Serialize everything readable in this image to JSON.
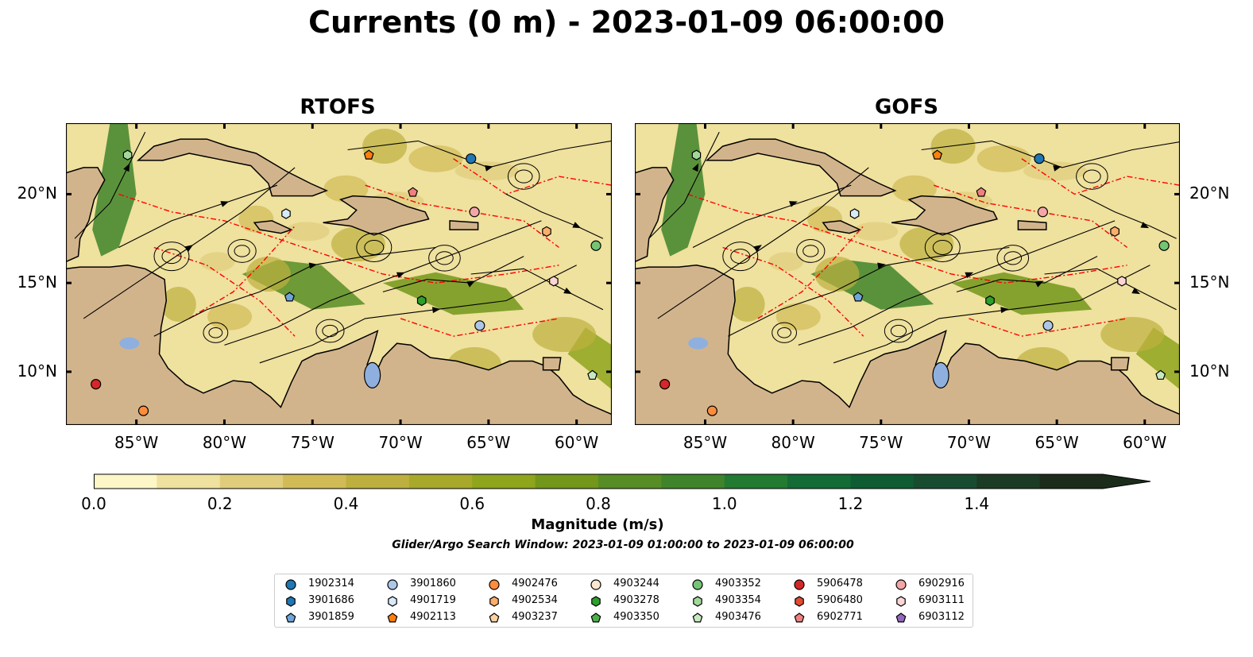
{
  "title": "Currents (0 m) - 2023-01-09 06:00:00",
  "panels": [
    {
      "title": "RTOFS",
      "model": "rtofs"
    },
    {
      "title": "GOFS",
      "model": "gofs"
    }
  ],
  "map": {
    "lon_range": [
      -89,
      -58
    ],
    "lat_range": [
      7,
      24
    ],
    "x_ticks": [
      {
        "lon": -85,
        "label": "85°W"
      },
      {
        "lon": -80,
        "label": "80°W"
      },
      {
        "lon": -75,
        "label": "75°W"
      },
      {
        "lon": -70,
        "label": "70°W"
      },
      {
        "lon": -65,
        "label": "65°W"
      },
      {
        "lon": -60,
        "label": "60°W"
      }
    ],
    "y_ticks": [
      {
        "lat": 20,
        "label": "20°N"
      },
      {
        "lat": 15,
        "label": "15°N"
      },
      {
        "lat": 10,
        "label": "10°N"
      }
    ],
    "colors": {
      "land": "#d2b48c",
      "lakes": "#8fb0de",
      "eez": "#ff0000",
      "streamlines": "#000000"
    }
  },
  "colorbar": {
    "label": "Magnitude (m/s)",
    "range": [
      0,
      1.6
    ],
    "extend": "max",
    "ticks": [
      {
        "value": 0.0,
        "label": "0.0"
      },
      {
        "value": 0.2,
        "label": "0.2"
      },
      {
        "value": 0.4,
        "label": "0.4"
      },
      {
        "value": 0.6,
        "label": "0.6"
      },
      {
        "value": 0.8,
        "label": "0.8"
      },
      {
        "value": 1.0,
        "label": "1.0"
      },
      {
        "value": 1.2,
        "label": "1.2"
      },
      {
        "value": 1.4,
        "label": "1.4"
      }
    ],
    "colors": [
      "#fdf7c8",
      "#efe19e",
      "#e0cd7c",
      "#d1bb56",
      "#bdb03e",
      "#a8a92b",
      "#8ea51c",
      "#72971a",
      "#578d24",
      "#3f842a",
      "#237a31",
      "#136b35",
      "#0e5c32",
      "#184c30",
      "#1c3b24",
      "#1b2c1b"
    ]
  },
  "search_window": "Glider/Argo Search Window: 2023-01-09 01:00:00 to 2023-01-09 06:00:00",
  "legend": [
    {
      "id": "1902314",
      "color": "#1f77b4",
      "marker": "circle"
    },
    {
      "id": "3901686",
      "color": "#1f77b4",
      "marker": "hexagon"
    },
    {
      "id": "3901859",
      "color": "#6fa5d8",
      "marker": "pentagon"
    },
    {
      "id": "3901860",
      "color": "#aec7e8",
      "marker": "circle"
    },
    {
      "id": "4901719",
      "color": "#d6ebf7",
      "marker": "hexagon"
    },
    {
      "id": "4902113",
      "color": "#ff7f0e",
      "marker": "pentagon"
    },
    {
      "id": "4902476",
      "color": "#fd8d3c",
      "marker": "circle"
    },
    {
      "id": "4902534",
      "color": "#fdae6b",
      "marker": "hexagon"
    },
    {
      "id": "4903237",
      "color": "#fdd0a2",
      "marker": "pentagon"
    },
    {
      "id": "4903244",
      "color": "#fde6cf",
      "marker": "circle"
    },
    {
      "id": "4903278",
      "color": "#2ca02c",
      "marker": "hexagon"
    },
    {
      "id": "4903350",
      "color": "#4daf4a",
      "marker": "pentagon"
    },
    {
      "id": "4903352",
      "color": "#74c476",
      "marker": "circle"
    },
    {
      "id": "4903354",
      "color": "#a1d99b",
      "marker": "hexagon"
    },
    {
      "id": "4903476",
      "color": "#c7e9c0",
      "marker": "pentagon"
    },
    {
      "id": "5906478",
      "color": "#d62728",
      "marker": "circle"
    },
    {
      "id": "5906480",
      "color": "#e34a33",
      "marker": "hexagon"
    },
    {
      "id": "6902771",
      "color": "#f08080",
      "marker": "pentagon"
    },
    {
      "id": "6902916",
      "color": "#f4a6a6",
      "marker": "circle"
    },
    {
      "id": "6903111",
      "color": "#fcd5d5",
      "marker": "hexagon"
    },
    {
      "id": "6903112",
      "color": "#9467bd",
      "marker": "pentagon"
    }
  ],
  "floats": [
    {
      "id": "4903354",
      "lon": -85.5,
      "lat": 22.2
    },
    {
      "id": "4902113",
      "lon": -71.8,
      "lat": 22.2
    },
    {
      "id": "1902314",
      "lon": -66.0,
      "lat": 22.0
    },
    {
      "id": "6902771",
      "lon": -69.3,
      "lat": 20.1
    },
    {
      "id": "4901719",
      "lon": -76.5,
      "lat": 18.9
    },
    {
      "id": "6902916",
      "lon": -65.8,
      "lat": 19.0
    },
    {
      "id": "4902534",
      "lon": -61.7,
      "lat": 17.9
    },
    {
      "id": "4903352",
      "lon": -58.9,
      "lat": 17.1
    },
    {
      "id": "6903111",
      "lon": -61.3,
      "lat": 15.1
    },
    {
      "id": "3901859",
      "lon": -76.3,
      "lat": 14.2
    },
    {
      "id": "4903278",
      "lon": -68.8,
      "lat": 14.0
    },
    {
      "id": "3901860",
      "lon": -65.5,
      "lat": 12.6
    },
    {
      "id": "5906478",
      "lon": -87.3,
      "lat": 9.3
    },
    {
      "id": "4902476",
      "lon": -84.6,
      "lat": 7.8
    },
    {
      "id": "4903476",
      "lon": -59.1,
      "lat": 9.8
    }
  ]
}
